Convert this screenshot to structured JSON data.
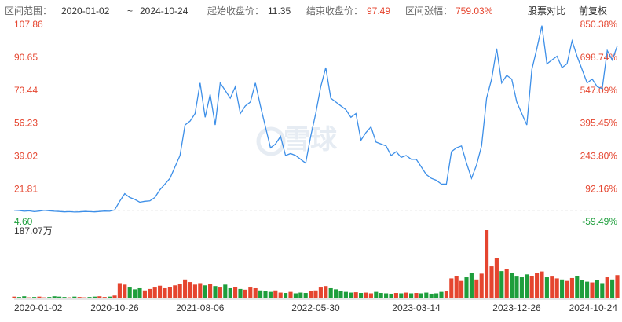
{
  "chart_data": {
    "type": "line",
    "header": {
      "range_label": "区间范围：",
      "start_date": "2020-01-02",
      "tilde": "~",
      "end_date": "2024-10-24",
      "start_label": "起始收盘价：",
      "start_close": 11.35,
      "end_label": "结束收盘价：",
      "end_close": 97.49,
      "change_label": "区间涨幅：",
      "change": "759.03%",
      "buttons": [
        "股票对比",
        "前复权"
      ]
    },
    "watermark": "雪球",
    "categories": [
      "2020-01-02",
      null,
      null,
      null,
      null,
      null,
      null,
      null,
      null,
      null,
      null,
      null,
      null,
      null,
      null,
      null,
      null,
      null,
      null,
      null,
      "2020-10-26",
      null,
      null,
      null,
      null,
      null,
      null,
      null,
      null,
      null,
      null,
      null,
      null,
      null,
      null,
      null,
      null,
      "2021-08-06",
      null,
      null,
      null,
      null,
      null,
      null,
      null,
      null,
      null,
      null,
      null,
      null,
      null,
      null,
      null,
      null,
      null,
      null,
      null,
      null,
      null,
      null,
      "2022-05-30",
      null,
      null,
      null,
      null,
      null,
      null,
      null,
      null,
      null,
      null,
      null,
      null,
      null,
      null,
      null,
      null,
      null,
      null,
      null,
      "2023-03-14",
      null,
      null,
      null,
      null,
      null,
      null,
      null,
      null,
      null,
      null,
      null,
      null,
      null,
      null,
      null,
      null,
      null,
      null,
      null,
      "2023-12-26",
      null,
      null,
      null,
      null,
      null,
      null,
      null,
      null,
      null,
      null,
      null,
      null,
      null,
      null,
      null,
      null,
      null,
      null,
      null,
      "2024-10-24"
    ],
    "values": [
      11.35,
      11.2,
      10.8,
      11.0,
      10.6,
      10.9,
      11.3,
      11.0,
      10.8,
      10.7,
      10.5,
      10.6,
      10.4,
      10.5,
      10.7,
      10.6,
      10.5,
      10.7,
      10.9,
      10.8,
      11.5,
      16,
      20,
      18,
      17,
      15.5,
      16,
      16.2,
      18,
      22,
      25,
      28,
      34,
      40,
      56,
      58,
      62,
      78,
      60,
      72,
      56,
      78,
      74,
      70,
      76,
      62,
      66,
      68,
      78,
      66,
      55,
      44,
      46,
      50,
      40,
      41,
      40,
      38,
      36,
      50,
      62,
      76,
      86,
      70,
      68,
      66,
      64,
      60,
      62,
      48,
      52,
      55,
      47,
      46,
      45,
      40,
      42,
      39,
      40,
      38,
      38,
      34,
      30,
      28,
      27,
      25,
      25,
      42,
      44,
      45,
      36,
      28,
      35,
      45,
      70,
      80,
      96,
      78,
      82,
      80,
      68,
      62,
      56,
      85,
      96,
      108,
      88,
      90,
      92,
      86,
      88,
      100,
      92,
      85,
      78,
      80,
      76,
      75,
      95,
      90,
      97.49
    ],
    "color": "#3d8fe8",
    "ylim": [
      4.6,
      107.86
    ],
    "yticks": [
      107.86,
      90.65,
      73.44,
      56.23,
      39.02,
      21.81,
      {
        "value": 4.6,
        "label": "4.60"
      }
    ],
    "y2lim": [
      -59.49,
      850.38
    ],
    "y2ticks": [
      {
        "value": 850.38,
        "label": "850.38%"
      },
      {
        "value": 698.74,
        "label": "698.74%"
      },
      {
        "value": 547.09,
        "label": "547.09%"
      },
      {
        "value": 395.45,
        "label": "395.45%"
      },
      {
        "value": 243.8,
        "label": "243.80%"
      },
      {
        "value": 92.16,
        "label": "92.16%"
      },
      {
        "value": -59.49,
        "label": "-59.49%"
      }
    ],
    "up_color": "#e5452f",
    "down_color": "#1e9e3c",
    "volume": {
      "values": [
        5,
        4,
        6,
        3,
        4,
        5,
        3,
        4,
        6,
        5,
        4,
        3,
        5,
        4,
        3,
        4,
        5,
        6,
        4,
        5,
        8,
        42,
        38,
        30,
        25,
        28,
        22,
        26,
        30,
        35,
        28,
        32,
        36,
        40,
        52,
        45,
        38,
        42,
        36,
        40,
        34,
        30,
        38,
        28,
        32,
        26,
        24,
        30,
        28,
        22,
        20,
        18,
        22,
        16,
        15,
        18,
        14,
        16,
        15,
        20,
        22,
        30,
        34,
        28,
        25,
        20,
        18,
        16,
        17,
        15,
        16,
        14,
        18,
        15,
        14,
        13,
        15,
        14,
        16,
        14,
        15,
        14,
        16,
        13,
        14,
        18,
        20,
        55,
        62,
        48,
        58,
        70,
        52,
        68,
        187.07,
        88,
        110,
        75,
        80,
        70,
        60,
        58,
        66,
        62,
        70,
        74,
        58,
        60,
        55,
        52,
        48,
        56,
        62,
        50,
        46,
        44,
        50,
        42,
        58,
        52,
        64
      ],
      "ylim": [
        0,
        187.07
      ],
      "yticks": [
        {
          "value": 187.07,
          "label": "187.07万"
        }
      ]
    }
  }
}
